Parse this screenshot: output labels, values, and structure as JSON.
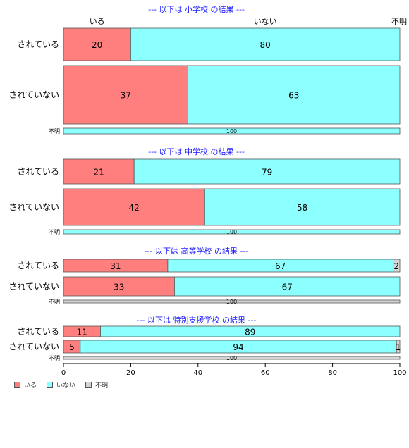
{
  "chart_data": {
    "type": "bar",
    "orientation": "horizontal",
    "stacked": true,
    "column_headers": [
      "いる",
      "いない",
      "不明"
    ],
    "xlim": [
      0,
      100
    ],
    "xticks": [
      0,
      20,
      40,
      60,
      80,
      100
    ],
    "colors": {
      "いる": "#ff7f7f",
      "いない": "#8cffff",
      "不明": "#d4d4d4"
    },
    "panels": [
      {
        "title": "--- 以下は 小学校 の結果 ---",
        "rows": [
          {
            "label": "されている",
            "values": [
              20,
              80,
              0
            ]
          },
          {
            "label": "されていない",
            "values": [
              37,
              63,
              0
            ]
          },
          {
            "label": "不明",
            "values": [
              0,
              100,
              0
            ]
          }
        ]
      },
      {
        "title": "--- 以下は 中学校 の結果 ---",
        "rows": [
          {
            "label": "されている",
            "values": [
              21,
              79,
              0
            ]
          },
          {
            "label": "されていない",
            "values": [
              42,
              58,
              0
            ]
          },
          {
            "label": "不明",
            "values": [
              0,
              100,
              0
            ]
          }
        ]
      },
      {
        "title": "--- 以下は 高等学校 の結果 ---",
        "rows": [
          {
            "label": "されている",
            "values": [
              31,
              67,
              2
            ]
          },
          {
            "label": "されていない",
            "values": [
              33,
              67,
              0
            ]
          },
          {
            "label": "不明",
            "values": [
              0,
              0,
              100
            ]
          }
        ]
      },
      {
        "title": "--- 以下は 特別支援学校 の結果 ---",
        "rows": [
          {
            "label": "されている",
            "values": [
              11,
              89,
              0
            ]
          },
          {
            "label": "されていない",
            "values": [
              5,
              94,
              1
            ]
          },
          {
            "label": "不明",
            "values": [
              0,
              0,
              100
            ]
          }
        ]
      }
    ],
    "value_labels": [
      [
        [
          "20",
          "80",
          ""
        ],
        [
          "37",
          "63",
          ""
        ],
        [
          "",
          "100",
          ""
        ]
      ],
      [
        [
          "21",
          "79",
          ""
        ],
        [
          "42",
          "58",
          ""
        ],
        [
          "",
          "100",
          ""
        ]
      ],
      [
        [
          "31",
          "67",
          "2"
        ],
        [
          "33",
          "67",
          ""
        ],
        [
          "",
          "",
          "100"
        ]
      ],
      [
        [
          "11",
          "89",
          ""
        ],
        [
          "5",
          "94",
          "1"
        ],
        [
          "",
          "",
          "100"
        ]
      ]
    ],
    "legend": [
      "いる",
      "いない",
      "不明"
    ],
    "legend_position": "bottom-left"
  }
}
